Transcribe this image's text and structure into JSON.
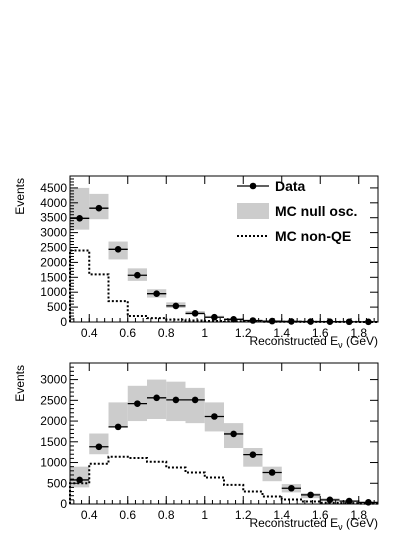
{
  "chart_data": [
    {
      "type": "scatter",
      "ylabel": "Events",
      "xlabel": "Reconstructed E",
      "xlabel_sub": "ν",
      "xlabel_unit": " (GeV)",
      "xlim": [
        0.3,
        1.9
      ],
      "ylim": [
        0,
        4900
      ],
      "yticks": [
        0,
        500,
        1000,
        1500,
        2000,
        2500,
        3000,
        3500,
        4000,
        4500
      ],
      "xticks": [
        0.4,
        0.6,
        0.8,
        1,
        1.2,
        1.4,
        1.6,
        1.8
      ],
      "bin_edges": [
        0.3,
        0.4,
        0.5,
        0.6,
        0.7,
        0.8,
        0.9,
        1.0,
        1.1,
        1.2,
        1.3,
        1.4,
        1.5,
        1.6,
        1.7,
        1.8,
        1.9
      ],
      "legend": {
        "placement": "top-right",
        "entries": [
          "Data",
          "MC null osc.",
          "MC non-QE"
        ]
      },
      "series": [
        {
          "name": "Data",
          "x": [
            0.35,
            0.45,
            0.55,
            0.65,
            0.75,
            0.85,
            0.95,
            1.05,
            1.15,
            1.25,
            1.35,
            1.45,
            1.55,
            1.65,
            1.75,
            1.85
          ],
          "values": [
            3480,
            3820,
            2440,
            1570,
            950,
            540,
            290,
            160,
            90,
            50,
            30,
            20,
            15,
            10,
            8,
            5
          ]
        },
        {
          "name": "MC null osc.",
          "type": "band",
          "low": [
            3100,
            3450,
            2100,
            1380,
            820,
            470,
            240,
            140,
            80,
            45,
            28,
            20,
            14,
            10,
            8,
            6
          ],
          "high": [
            4500,
            4300,
            2700,
            1800,
            1100,
            660,
            370,
            210,
            120,
            70,
            45,
            32,
            24,
            18,
            14,
            10
          ]
        },
        {
          "name": "MC non-QE",
          "type": "step",
          "values": [
            2400,
            1600,
            700,
            200,
            130,
            80,
            50,
            35,
            25,
            15,
            10,
            8,
            6,
            4,
            3,
            2
          ]
        }
      ]
    },
    {
      "type": "scatter",
      "ylabel": "Events",
      "xlabel": "Reconstructed E",
      "xlabel_sub": "ν",
      "xlabel_unit": " (GeV)",
      "xlim": [
        0.3,
        1.9
      ],
      "ylim": [
        0,
        3400
      ],
      "yticks": [
        0,
        500,
        1000,
        1500,
        2000,
        2500,
        3000
      ],
      "xticks": [
        0.4,
        0.6,
        0.8,
        1,
        1.2,
        1.4,
        1.6,
        1.8
      ],
      "bin_edges": [
        0.3,
        0.4,
        0.5,
        0.6,
        0.7,
        0.8,
        0.9,
        1.0,
        1.1,
        1.2,
        1.3,
        1.4,
        1.5,
        1.6,
        1.7,
        1.8,
        1.9
      ],
      "series": [
        {
          "name": "Data",
          "x": [
            0.35,
            0.45,
            0.55,
            0.65,
            0.75,
            0.85,
            0.95,
            1.05,
            1.15,
            1.25,
            1.35,
            1.45,
            1.55,
            1.65,
            1.75,
            1.85
          ],
          "values": [
            580,
            1380,
            1860,
            2420,
            2560,
            2510,
            2510,
            2110,
            1690,
            1190,
            760,
            380,
            220,
            100,
            70,
            40
          ]
        },
        {
          "name": "MC null osc.",
          "type": "band",
          "low": [
            400,
            1200,
            1850,
            2000,
            2050,
            2000,
            1950,
            1750,
            1350,
            900,
            550,
            280,
            140,
            70,
            40,
            20
          ],
          "high": [
            900,
            1700,
            2450,
            2850,
            3000,
            2950,
            2800,
            2450,
            1950,
            1350,
            900,
            480,
            260,
            140,
            90,
            50
          ]
        },
        {
          "name": "MC non-QE",
          "type": "step",
          "values": [
            500,
            970,
            1140,
            1110,
            1020,
            880,
            760,
            640,
            460,
            300,
            180,
            110,
            60,
            30,
            20,
            10
          ]
        }
      ]
    }
  ]
}
